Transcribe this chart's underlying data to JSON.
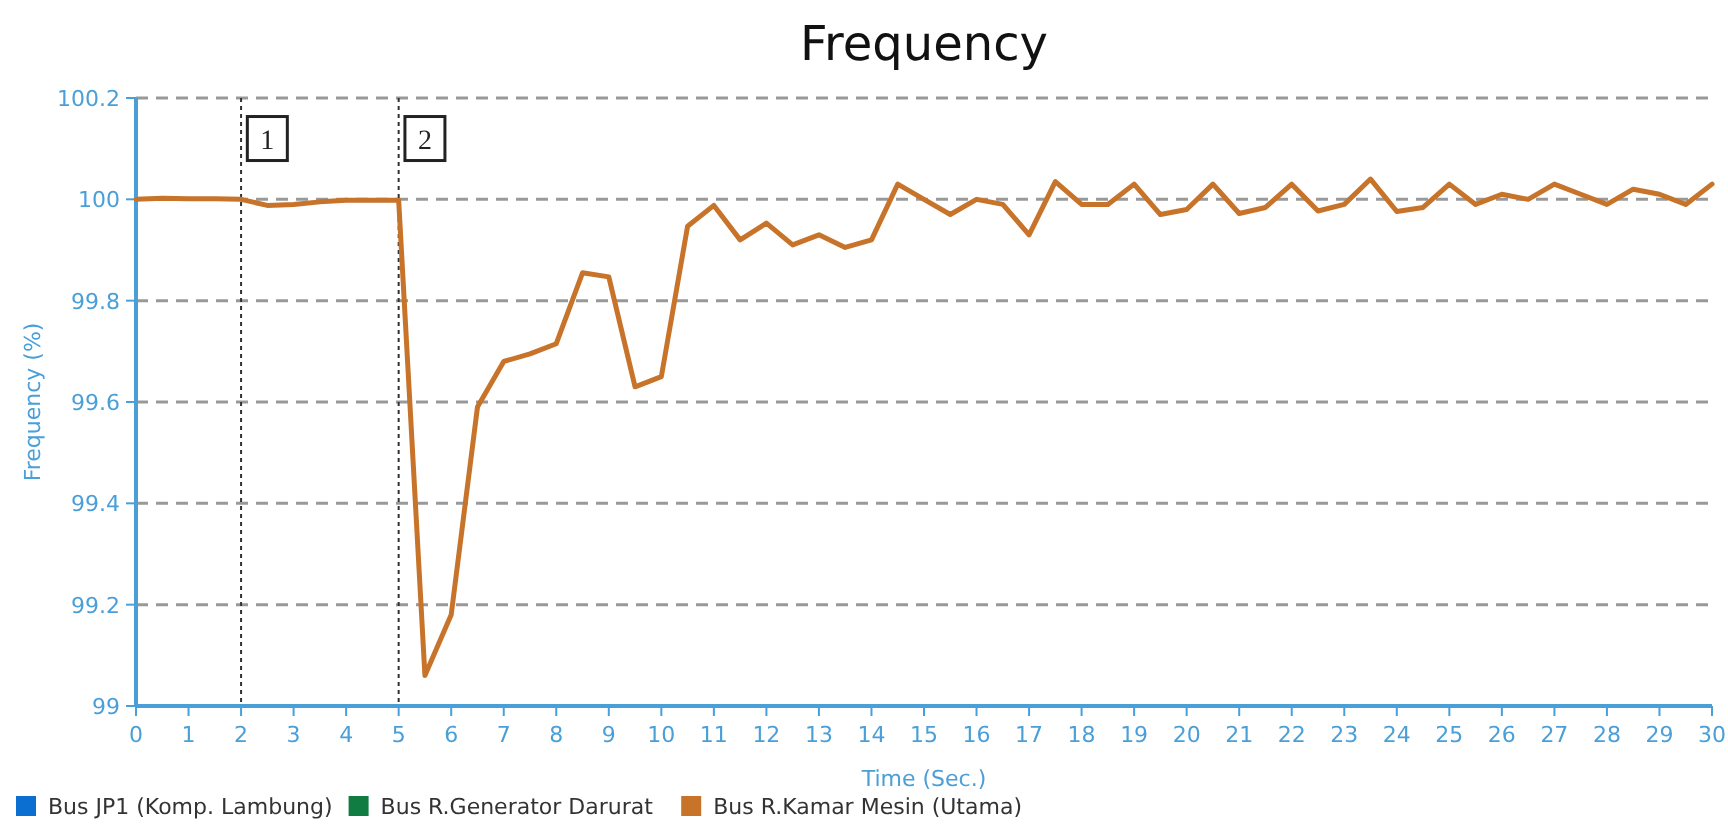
{
  "chart_data": {
    "type": "line",
    "title": "Frequency",
    "xlabel": "Time (Sec.)",
    "ylabel": "Frequency (%)",
    "x": [
      0,
      0.5,
      1,
      1.5,
      2,
      2.5,
      3,
      3.5,
      4,
      4.5,
      5,
      5.5,
      6,
      6.5,
      7,
      7.5,
      8,
      8.5,
      9,
      9.5,
      10,
      10.5,
      11,
      11.5,
      12,
      12.5,
      13,
      13.5,
      14,
      14.5,
      15,
      15.5,
      16,
      16.5,
      17,
      17.5,
      18,
      18.5,
      19,
      19.5,
      20,
      20.5,
      21,
      21.5,
      22,
      22.5,
      23,
      23.5,
      24,
      24.5,
      25,
      25.5,
      26,
      26.5,
      27,
      27.5,
      28,
      28.5,
      29,
      29.5,
      30
    ],
    "series": [
      {
        "name": "Bus JP1 (Komp. Lambung)",
        "color": "#0a6fd1",
        "values": [
          null,
          null,
          null,
          null,
          null,
          null,
          null,
          null,
          null,
          null,
          null,
          null,
          null,
          null,
          null,
          null,
          null,
          null,
          null,
          null,
          null,
          null,
          null,
          null,
          null,
          null,
          null,
          null,
          null,
          null,
          null,
          null,
          null,
          null,
          null,
          null,
          null,
          null,
          null,
          null,
          null,
          null,
          null,
          null,
          null,
          null,
          null,
          null,
          null,
          null,
          null,
          null,
          null,
          null,
          null,
          null,
          null,
          null,
          null,
          null,
          null
        ]
      },
      {
        "name": "Bus R.Generator Darurat",
        "color": "#107c41",
        "values": [
          null,
          null,
          null,
          null,
          null,
          null,
          null,
          null,
          null,
          null,
          null,
          null,
          null,
          null,
          null,
          null,
          null,
          null,
          null,
          null,
          null,
          null,
          null,
          null,
          null,
          null,
          null,
          null,
          null,
          null,
          null,
          null,
          null,
          null,
          null,
          null,
          null,
          null,
          null,
          null,
          null,
          null,
          null,
          null,
          null,
          null,
          null,
          null,
          null,
          null,
          null,
          null,
          null,
          null,
          null,
          null,
          null,
          null,
          null,
          null,
          null
        ]
      },
      {
        "name": "Bus R.Kamar Mesin (Utama)",
        "color": "#c8732a",
        "values": [
          100.0,
          100.002,
          100.001,
          100.001,
          100.0,
          99.988,
          99.99,
          99.995,
          99.998,
          99.998,
          99.998,
          99.06,
          99.18,
          99.59,
          99.68,
          99.695,
          99.715,
          99.855,
          99.847,
          99.63,
          99.65,
          99.947,
          99.988,
          99.92,
          99.953,
          99.91,
          99.93,
          99.905,
          99.92,
          100.03,
          100.0,
          99.97,
          100.0,
          99.99,
          99.93,
          100.035,
          99.99,
          99.99,
          100.03,
          99.97,
          99.98,
          100.03,
          99.972,
          99.984,
          100.03,
          99.977,
          99.99,
          100.04,
          99.976,
          99.984,
          100.03,
          99.99,
          100.01,
          100.0,
          100.03,
          100.01,
          99.99,
          100.02,
          100.01,
          99.99,
          100.03
        ]
      }
    ],
    "xlim": [
      0,
      30
    ],
    "xticks": [
      0,
      1,
      2,
      3,
      4,
      5,
      6,
      7,
      8,
      9,
      10,
      11,
      12,
      13,
      14,
      15,
      16,
      17,
      18,
      19,
      20,
      21,
      22,
      23,
      24,
      25,
      26,
      27,
      28,
      29,
      30
    ],
    "ylim": [
      99,
      100.2
    ],
    "yticks": [
      99,
      99.2,
      99.4,
      99.6,
      99.8,
      100,
      100.2
    ],
    "grid": "y",
    "legend": "bottom left",
    "marker": "none",
    "line_style": "solid",
    "ref_lines": [
      {
        "axis": "x",
        "value": 2,
        "color": "#333333",
        "line_style": "dotted"
      },
      {
        "axis": "x",
        "value": 5,
        "color": "#333333",
        "line_style": "dotted"
      }
    ],
    "annotations": [
      {
        "text": "1",
        "x": 2.5,
        "y": 100.12
      },
      {
        "text": "2",
        "x": 5.5,
        "y": 100.12
      }
    ]
  }
}
